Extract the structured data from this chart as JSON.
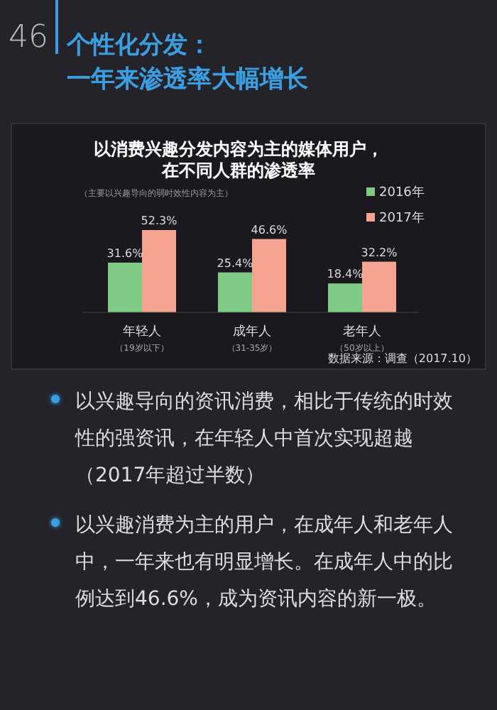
{
  "chart_data": {
    "type": "bar",
    "title": "以消费兴趣分发内容为主的媒体用户，在不同人群的渗透率",
    "subtitle": "（主要以兴趣导向的弱时效性内容为主）",
    "categories": [
      "年轻人（19岁以下）",
      "成年人（31-35岁）",
      "老年人（50岁以上）"
    ],
    "series": [
      {
        "name": "2016年",
        "color": "#7fcb86",
        "values": [
          31.6,
          25.4,
          18.4
        ],
        "value_labels": [
          "31.6%",
          "25.4%",
          "18.4%"
        ]
      },
      {
        "name": "2017年",
        "color": "#f4a491",
        "values": [
          52.3,
          46.6,
          32.2
        ],
        "value_labels": [
          "52.3%",
          "46.6%",
          "32.2%"
        ]
      }
    ],
    "legend": "top right",
    "annotations": [
      "46",
      "个性化分发：",
      "一年来渗透率大幅增长",
      "数据来源：调查（2017.10）",
      "以兴趣导向的资讯消费，相比于传统的时效性的强资讯，在年轻人中首次实现超越（2017年超过半数）",
      "以兴趣消费为主的用户，在成年人和老年人中，一年来也有明显增长。在成年人中的比例达到46.6%，成为资讯内容的新一极。"
    ]
  }
}
